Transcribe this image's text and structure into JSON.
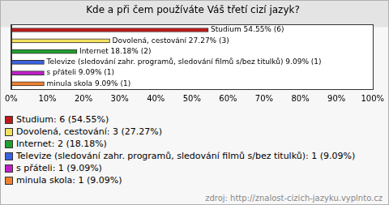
{
  "chart_data": {
    "type": "bar",
    "title": "Kde a při čem používáte Váš třetí cizí jazyk?",
    "categories": [
      "Studium",
      "Dovolená, cestování",
      "Internet",
      "Televize (sledování zahr. programů, sledování filmů s/bez titulků)",
      "s přáteli",
      "minula skola"
    ],
    "values": [
      54.55,
      27.27,
      18.18,
      9.09,
      9.09,
      9.09
    ],
    "value_labels": [
      "Studium 54.55% (6)",
      "Dovolená, cestování 27.27% (3)",
      "Internet 18.18% (2)",
      "Televize (sledování zahr. programů, sledování filmů s/bez titulků) 9.09% (1)",
      "s přáteli 9.09% (1)",
      "minula skola 9.09% (1)"
    ],
    "legend_labels": [
      "Studium: 6 (54.55%)",
      "Dovolená, cestování: 3 (27.27%)",
      "Internet: 2 (18.18%)",
      "Televize (sledování zahr. programů, sledování filmů s/bez titulků): 1 (9.09%)",
      "s přáteli: 1 (9.09%)",
      "minula skola: 1 (9.09%)"
    ],
    "colors": [
      "#c01818",
      "#f2e060",
      "#20a030",
      "#3a62e0",
      "#c020c8",
      "#f08030"
    ],
    "orientation": "horizontal",
    "data_labels": true,
    "legend": "bottom",
    "grid": false,
    "tick_labels": "x",
    "xlim": [
      0,
      100
    ],
    "xticks": [
      {
        "value": 0,
        "label": "0%"
      },
      {
        "value": 10,
        "label": "10%"
      },
      {
        "value": 20,
        "label": "20%"
      },
      {
        "value": 30,
        "label": "30%"
      },
      {
        "value": 40,
        "label": "40%"
      },
      {
        "value": 50,
        "label": "50%"
      },
      {
        "value": 60,
        "label": "60%"
      },
      {
        "value": 70,
        "label": "70%"
      },
      {
        "value": 80,
        "label": "80%"
      },
      {
        "value": 90,
        "label": "90%"
      },
      {
        "value": 100,
        "label": "100%"
      }
    ],
    "source": "zdroj: http://znalost-cizich-jazyku.vyplnto.cz"
  }
}
